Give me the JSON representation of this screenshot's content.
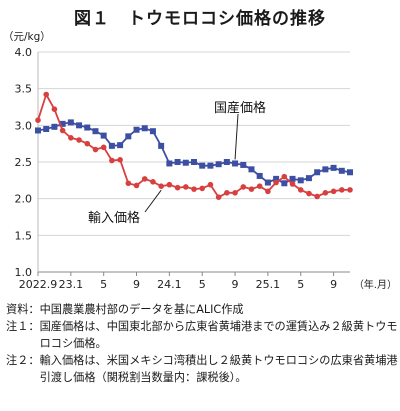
{
  "title": "図１　トウモロコシ価格の推移",
  "chart_data": {
    "type": "line",
    "unit_label": "（元/kg）",
    "ylim": [
      1.0,
      4.0
    ],
    "y_ticks": [
      "1.0",
      "1.5",
      "2.0",
      "2.5",
      "3.0",
      "3.5",
      "4.0"
    ],
    "x_tick_labels": [
      {
        "i": 0,
        "label": "2022.9"
      },
      {
        "i": 4,
        "label": "23.1"
      },
      {
        "i": 8,
        "label": "5"
      },
      {
        "i": 12,
        "label": "9"
      },
      {
        "i": 16,
        "label": "24.1"
      },
      {
        "i": 20,
        "label": "5"
      },
      {
        "i": 24,
        "label": "9"
      },
      {
        "i": 28,
        "label": "25.1"
      },
      {
        "i": 32,
        "label": "5"
      },
      {
        "i": 36,
        "label": "9"
      }
    ],
    "x_axis_label": "（年.月）",
    "grid": true,
    "series": [
      {
        "name": "国産価格",
        "color": "#3d4fa3",
        "marker": "square",
        "values": [
          2.93,
          2.95,
          2.98,
          3.02,
          3.04,
          3.0,
          2.97,
          2.92,
          2.86,
          2.72,
          2.73,
          2.85,
          2.94,
          2.96,
          2.92,
          2.72,
          2.48,
          2.5,
          2.49,
          2.5,
          2.45,
          2.45,
          2.47,
          2.5,
          2.48,
          2.46,
          2.4,
          2.31,
          2.22,
          2.27,
          2.21,
          2.27,
          2.25,
          2.28,
          2.36,
          2.4,
          2.42,
          2.38,
          2.36
        ]
      },
      {
        "name": "輸入価格",
        "color": "#d8403f",
        "marker": "circle",
        "values": [
          3.07,
          3.42,
          3.22,
          2.93,
          2.83,
          2.8,
          2.75,
          2.67,
          2.7,
          2.52,
          2.53,
          2.21,
          2.18,
          2.27,
          2.23,
          2.17,
          2.19,
          2.15,
          2.16,
          2.13,
          2.14,
          2.19,
          2.02,
          2.08,
          2.08,
          2.16,
          2.13,
          2.17,
          2.1,
          2.22,
          2.3,
          2.2,
          2.12,
          2.07,
          2.03,
          2.08,
          2.1,
          2.12,
          2.12
        ]
      }
    ]
  },
  "notes": [
    {
      "label": "資料：",
      "text": "中国農業農村部のデータを基にALIC作成"
    },
    {
      "label": "注１：",
      "text": "国産価格は、中国東北部から広東省黄埔港までの運賃込み２級黄トウモロコシ価格。"
    },
    {
      "label": "注２：",
      "text": "輸入価格は、米国メキシコ湾積出し２級黄トウモロコシの広東省黄埔港引渡し価格（関税割当数量内：課税後）。"
    }
  ]
}
